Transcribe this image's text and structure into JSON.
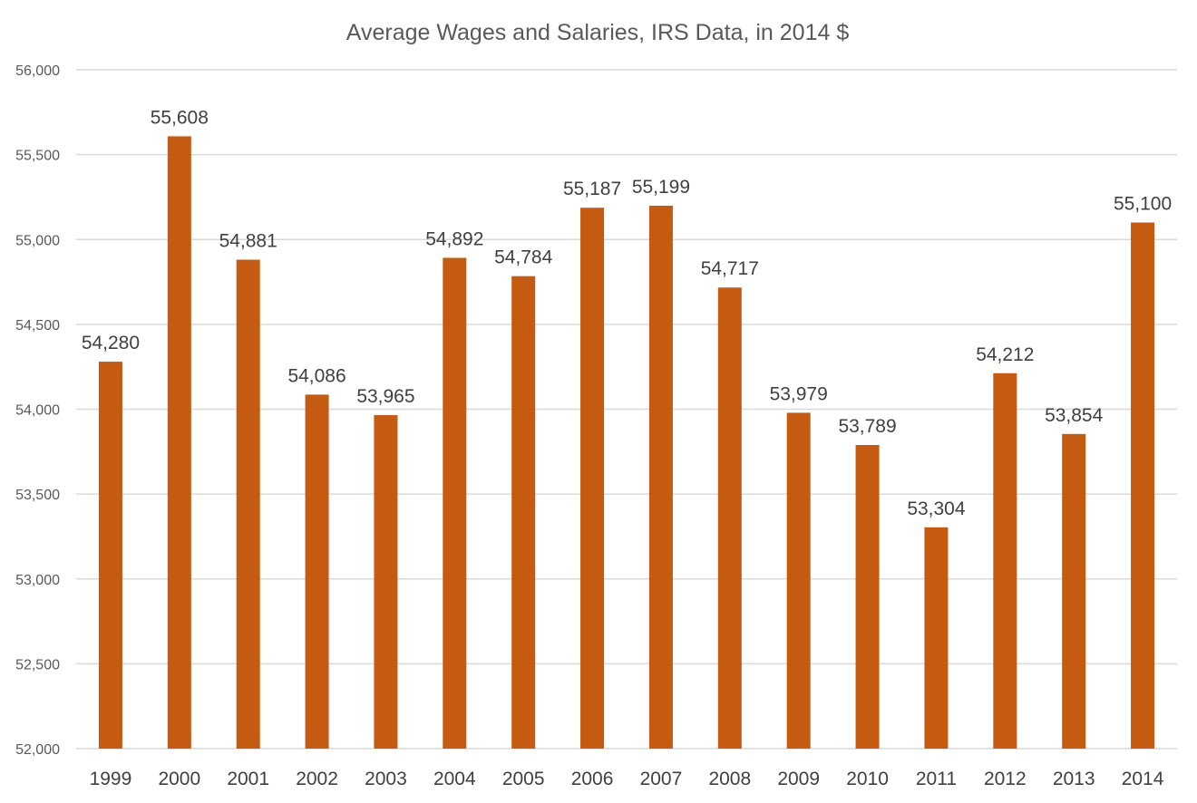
{
  "chart_data": {
    "type": "bar",
    "title": "Average Wages and Salaries, IRS Data, in 2014 $",
    "xlabel": "",
    "ylabel": "",
    "categories": [
      "1999",
      "2000",
      "2001",
      "2002",
      "2003",
      "2004",
      "2005",
      "2006",
      "2007",
      "2008",
      "2009",
      "2010",
      "2011",
      "2012",
      "2013",
      "2014"
    ],
    "values": [
      54280,
      55608,
      54881,
      54086,
      53965,
      54892,
      54784,
      55187,
      55199,
      54717,
      53979,
      53789,
      53304,
      54212,
      53854,
      55100
    ],
    "value_labels": [
      "54,280",
      "55,608",
      "54,881",
      "54,086",
      "53,965",
      "54,892",
      "54,784",
      "55,187",
      "55,199",
      "54,717",
      "53,979",
      "53,789",
      "53,304",
      "54,212",
      "53,854",
      "55,100"
    ],
    "ylim": [
      52000,
      56000
    ],
    "yticks": [
      52000,
      52500,
      53000,
      53500,
      54000,
      54500,
      55000,
      55500,
      56000
    ],
    "ytick_labels": [
      "52,000",
      "52,500",
      "53,000",
      "53,500",
      "54,000",
      "54,500",
      "55,000",
      "55,500",
      "56,000"
    ],
    "grid": true,
    "legend": "none",
    "bar_color": "#c55a11"
  }
}
